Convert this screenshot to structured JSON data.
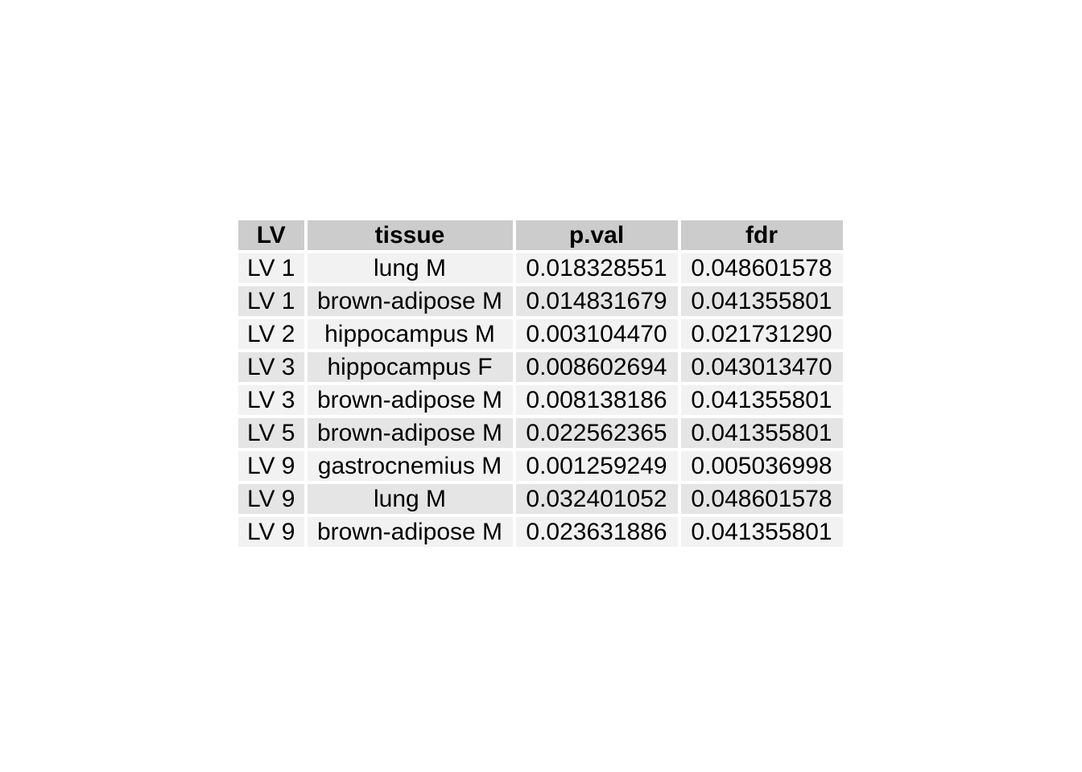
{
  "chart_data": {
    "type": "table",
    "columns": [
      "LV",
      "tissue",
      "p.val",
      "fdr"
    ],
    "rows": [
      [
        "LV 1",
        "lung M",
        "0.018328551",
        "0.048601578"
      ],
      [
        "LV 1",
        "brown-adipose M",
        "0.014831679",
        "0.041355801"
      ],
      [
        "LV 2",
        "hippocampus M",
        "0.003104470",
        "0.021731290"
      ],
      [
        "LV 3",
        "hippocampus F",
        "0.008602694",
        "0.043013470"
      ],
      [
        "LV 3",
        "brown-adipose M",
        "0.008138186",
        "0.041355801"
      ],
      [
        "LV 5",
        "brown-adipose M",
        "0.022562365",
        "0.041355801"
      ],
      [
        "LV 9",
        "gastrocnemius M",
        "0.001259249",
        "0.005036998"
      ],
      [
        "LV 9",
        "lung M",
        "0.032401052",
        "0.048601578"
      ],
      [
        "LV 9",
        "brown-adipose M",
        "0.023631886",
        "0.041355801"
      ]
    ],
    "colors": {
      "header_bg": "#cccccc",
      "row_odd_bg": "#f2f2f2",
      "row_even_bg": "#e5e5e5"
    }
  }
}
